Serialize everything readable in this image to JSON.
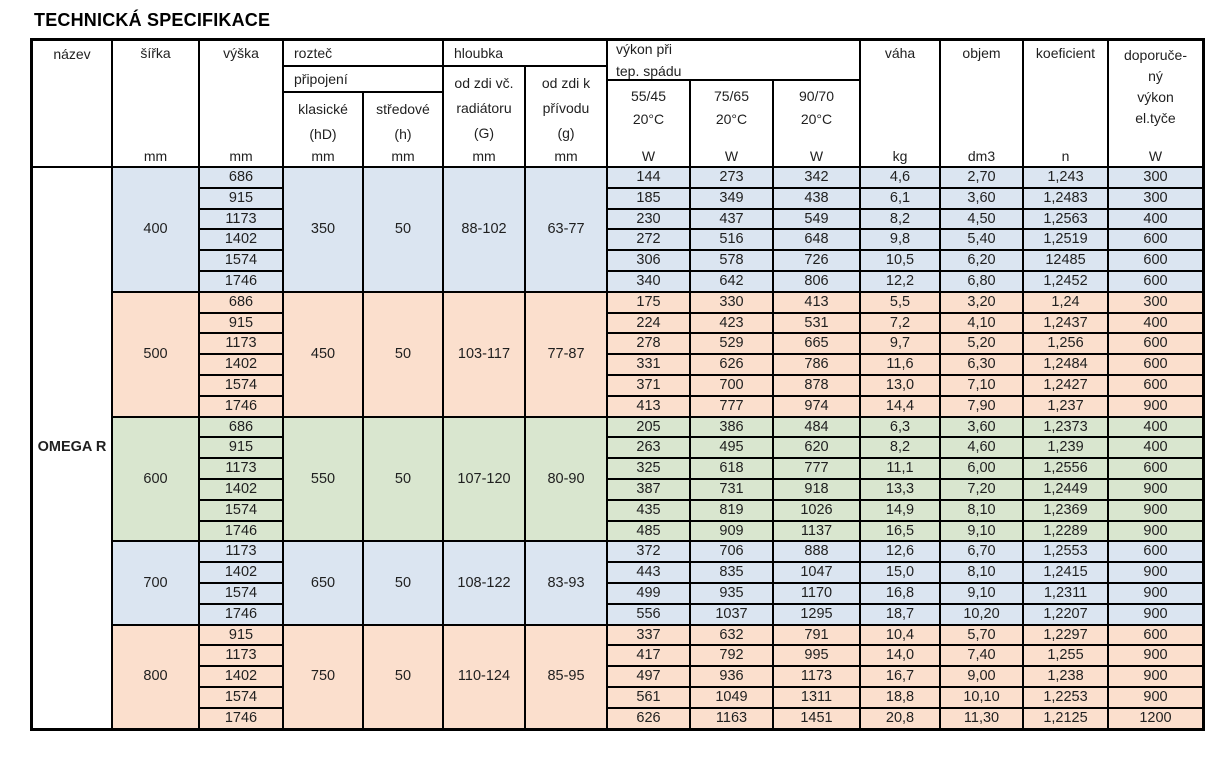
{
  "title": "TECHNICKÁ SPECIFIKACE",
  "table": {
    "product": "OMEGA R",
    "header": {
      "nazev": {
        "label": "název"
      },
      "sirka": {
        "label": "šířka",
        "unit": "mm"
      },
      "vyska": {
        "label": "výška",
        "unit": "mm"
      },
      "roztec": {
        "label": "rozteč",
        "sub": "připojení",
        "klasicke": {
          "line1": "klasické",
          "line2": "(hD)",
          "unit": "mm"
        },
        "stredove": {
          "line1": "středové",
          "line2": "(h)",
          "unit": "mm"
        }
      },
      "hloubka": {
        "label": "hloubka",
        "radiator": {
          "line1": "od zdi vč.",
          "line2": "radiátoru",
          "line3": "(G)",
          "unit": "mm"
        },
        "privod": {
          "line1": "od zdi k",
          "line2": "přívodu",
          "line3": "(g)",
          "unit": "mm"
        }
      },
      "vykon": {
        "line1": "výkon při",
        "line2": "tep. spádu",
        "t5545": {
          "label": "55/45",
          "temp": "20°C",
          "unit": "W"
        },
        "t7565": {
          "label": "75/65",
          "temp": "20°C",
          "unit": "W"
        },
        "t9070": {
          "label": "90/70",
          "temp": "20°C",
          "unit": "W"
        }
      },
      "vaha": {
        "label": "váha",
        "unit": "kg"
      },
      "objem": {
        "label": "objem",
        "unit": "dm3"
      },
      "koeficient": {
        "label": "koeficient",
        "unit": "n"
      },
      "doporuceny": {
        "line1": "doporuče-",
        "line2": "ný",
        "line3": "výkon",
        "line4": "el.tyče",
        "unit": "W"
      }
    },
    "colors": {
      "blue": "#dbe5f1",
      "peach": "#fbdfcd",
      "green": "#d9e6cf"
    },
    "groups": [
      {
        "sirka": "400",
        "roztec_klasicke": "350",
        "roztec_stredove": "50",
        "hloubka_radiator": "88-102",
        "hloubka_privod": "63-77",
        "color": "blue",
        "rows": [
          {
            "vyska": "686",
            "w5545": "144",
            "w7565": "273",
            "w9070": "342",
            "vaha": "4,6",
            "objem": "2,70",
            "koeficient": "1,243",
            "el_tyc": "300"
          },
          {
            "vyska": "915",
            "w5545": "185",
            "w7565": "349",
            "w9070": "438",
            "vaha": "6,1",
            "objem": "3,60",
            "koeficient": "1,2483",
            "el_tyc": "300"
          },
          {
            "vyska": "1173",
            "w5545": "230",
            "w7565": "437",
            "w9070": "549",
            "vaha": "8,2",
            "objem": "4,50",
            "koeficient": "1,2563",
            "el_tyc": "400"
          },
          {
            "vyska": "1402",
            "w5545": "272",
            "w7565": "516",
            "w9070": "648",
            "vaha": "9,8",
            "objem": "5,40",
            "koeficient": "1,2519",
            "el_tyc": "600"
          },
          {
            "vyska": "1574",
            "w5545": "306",
            "w7565": "578",
            "w9070": "726",
            "vaha": "10,5",
            "objem": "6,20",
            "koeficient": "12485",
            "el_tyc": "600"
          },
          {
            "vyska": "1746",
            "w5545": "340",
            "w7565": "642",
            "w9070": "806",
            "vaha": "12,2",
            "objem": "6,80",
            "koeficient": "1,2452",
            "el_tyc": "600"
          }
        ]
      },
      {
        "sirka": "500",
        "roztec_klasicke": "450",
        "roztec_stredove": "50",
        "hloubka_radiator": "103-117",
        "hloubka_privod": "77-87",
        "color": "peach",
        "rows": [
          {
            "vyska": "686",
            "w5545": "175",
            "w7565": "330",
            "w9070": "413",
            "vaha": "5,5",
            "objem": "3,20",
            "koeficient": "1,24",
            "el_tyc": "300"
          },
          {
            "vyska": "915",
            "w5545": "224",
            "w7565": "423",
            "w9070": "531",
            "vaha": "7,2",
            "objem": "4,10",
            "koeficient": "1,2437",
            "el_tyc": "400"
          },
          {
            "vyska": "1173",
            "w5545": "278",
            "w7565": "529",
            "w9070": "665",
            "vaha": "9,7",
            "objem": "5,20",
            "koeficient": "1,256",
            "el_tyc": "600"
          },
          {
            "vyska": "1402",
            "w5545": "331",
            "w7565": "626",
            "w9070": "786",
            "vaha": "11,6",
            "objem": "6,30",
            "koeficient": "1,2484",
            "el_tyc": "600"
          },
          {
            "vyska": "1574",
            "w5545": "371",
            "w7565": "700",
            "w9070": "878",
            "vaha": "13,0",
            "objem": "7,10",
            "koeficient": "1,2427",
            "el_tyc": "600"
          },
          {
            "vyska": "1746",
            "w5545": "413",
            "w7565": "777",
            "w9070": "974",
            "vaha": "14,4",
            "objem": "7,90",
            "koeficient": "1,237",
            "el_tyc": "900"
          }
        ]
      },
      {
        "sirka": "600",
        "roztec_klasicke": "550",
        "roztec_stredove": "50",
        "hloubka_radiator": "107-120",
        "hloubka_privod": "80-90",
        "color": "green",
        "rows": [
          {
            "vyska": "686",
            "w5545": "205",
            "w7565": "386",
            "w9070": "484",
            "vaha": "6,3",
            "objem": "3,60",
            "koeficient": "1,2373",
            "el_tyc": "400"
          },
          {
            "vyska": "915",
            "w5545": "263",
            "w7565": "495",
            "w9070": "620",
            "vaha": "8,2",
            "objem": "4,60",
            "koeficient": "1,239",
            "el_tyc": "400"
          },
          {
            "vyska": "1173",
            "w5545": "325",
            "w7565": "618",
            "w9070": "777",
            "vaha": "11,1",
            "objem": "6,00",
            "koeficient": "1,2556",
            "el_tyc": "600"
          },
          {
            "vyska": "1402",
            "w5545": "387",
            "w7565": "731",
            "w9070": "918",
            "vaha": "13,3",
            "objem": "7,20",
            "koeficient": "1,2449",
            "el_tyc": "900"
          },
          {
            "vyska": "1574",
            "w5545": "435",
            "w7565": "819",
            "w9070": "1026",
            "vaha": "14,9",
            "objem": "8,10",
            "koeficient": "1,2369",
            "el_tyc": "900"
          },
          {
            "vyska": "1746",
            "w5545": "485",
            "w7565": "909",
            "w9070": "1137",
            "vaha": "16,5",
            "objem": "9,10",
            "koeficient": "1,2289",
            "el_tyc": "900"
          }
        ]
      },
      {
        "sirka": "700",
        "roztec_klasicke": "650",
        "roztec_stredove": "50",
        "hloubka_radiator": "108-122",
        "hloubka_privod": "83-93",
        "color": "blue",
        "rows": [
          {
            "vyska": "1173",
            "w5545": "372",
            "w7565": "706",
            "w9070": "888",
            "vaha": "12,6",
            "objem": "6,70",
            "koeficient": "1,2553",
            "el_tyc": "600"
          },
          {
            "vyska": "1402",
            "w5545": "443",
            "w7565": "835",
            "w9070": "1047",
            "vaha": "15,0",
            "objem": "8,10",
            "koeficient": "1,2415",
            "el_tyc": "900"
          },
          {
            "vyska": "1574",
            "w5545": "499",
            "w7565": "935",
            "w9070": "1170",
            "vaha": "16,8",
            "objem": "9,10",
            "koeficient": "1,2311",
            "el_tyc": "900"
          },
          {
            "vyska": "1746",
            "w5545": "556",
            "w7565": "1037",
            "w9070": "1295",
            "vaha": "18,7",
            "objem": "10,20",
            "koeficient": "1,2207",
            "el_tyc": "900"
          }
        ]
      },
      {
        "sirka": "800",
        "roztec_klasicke": "750",
        "roztec_stredove": "50",
        "hloubka_radiator": "110-124",
        "hloubka_privod": "85-95",
        "color": "peach",
        "rows": [
          {
            "vyska": "915",
            "w5545": "337",
            "w7565": "632",
            "w9070": "791",
            "vaha": "10,4",
            "objem": "5,70",
            "koeficient": "1,2297",
            "el_tyc": "600"
          },
          {
            "vyska": "1173",
            "w5545": "417",
            "w7565": "792",
            "w9070": "995",
            "vaha": "14,0",
            "objem": "7,40",
            "koeficient": "1,255",
            "el_tyc": "900"
          },
          {
            "vyska": "1402",
            "w5545": "497",
            "w7565": "936",
            "w9070": "1173",
            "vaha": "16,7",
            "objem": "9,00",
            "koeficient": "1,238",
            "el_tyc": "900"
          },
          {
            "vyska": "1574",
            "w5545": "561",
            "w7565": "1049",
            "w9070": "1311",
            "vaha": "18,8",
            "objem": "10,10",
            "koeficient": "1,2253",
            "el_tyc": "900"
          },
          {
            "vyska": "1746",
            "w5545": "626",
            "w7565": "1163",
            "w9070": "1451",
            "vaha": "20,8",
            "objem": "11,30",
            "koeficient": "1,2125",
            "el_tyc": "1200"
          }
        ]
      }
    ]
  }
}
